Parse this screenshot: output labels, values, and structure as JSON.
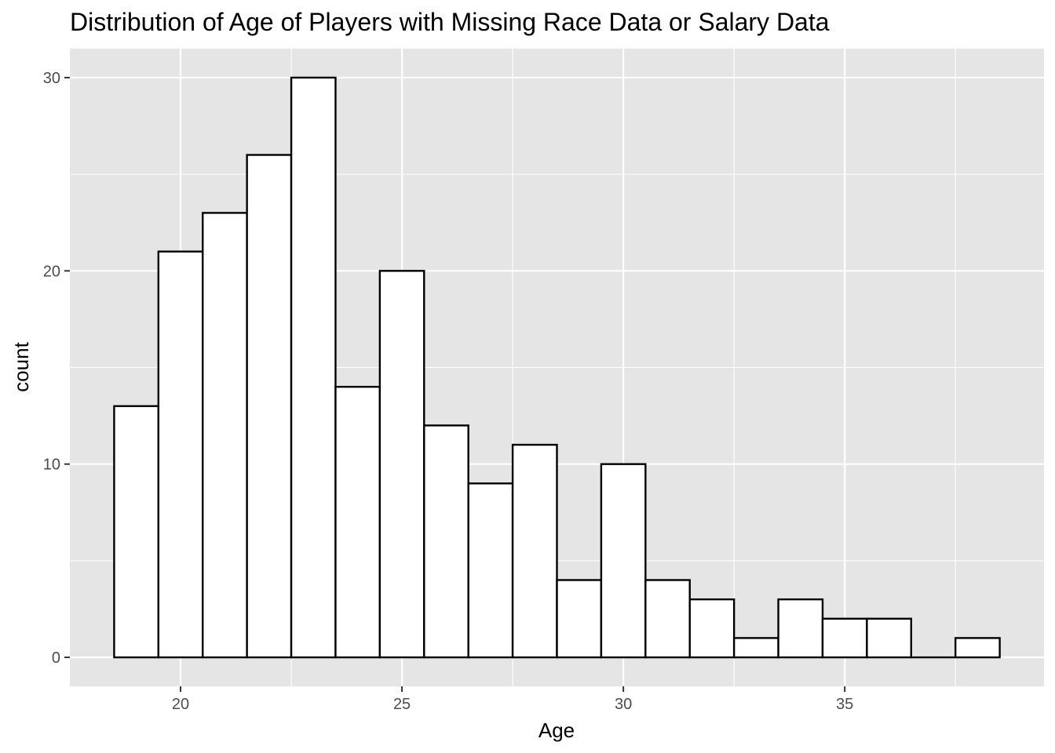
{
  "chart_data": {
    "type": "bar",
    "title": "Distribution of Age of Players with Missing Race Data or Salary Data",
    "xlabel": "Age",
    "ylabel": "count",
    "bin_width": 1,
    "bins": [
      {
        "x": 19,
        "count": 13
      },
      {
        "x": 20,
        "count": 21
      },
      {
        "x": 21,
        "count": 23
      },
      {
        "x": 22,
        "count": 26
      },
      {
        "x": 23,
        "count": 30
      },
      {
        "x": 24,
        "count": 14
      },
      {
        "x": 25,
        "count": 20
      },
      {
        "x": 26,
        "count": 12
      },
      {
        "x": 27,
        "count": 9
      },
      {
        "x": 28,
        "count": 11
      },
      {
        "x": 29,
        "count": 4
      },
      {
        "x": 30,
        "count": 10
      },
      {
        "x": 31,
        "count": 4
      },
      {
        "x": 32,
        "count": 3
      },
      {
        "x": 33,
        "count": 1
      },
      {
        "x": 34,
        "count": 3
      },
      {
        "x": 35,
        "count": 2
      },
      {
        "x": 36,
        "count": 2
      },
      {
        "x": 37,
        "count": 0
      },
      {
        "x": 38,
        "count": 1
      }
    ],
    "xlim": [
      17.5,
      39.5
    ],
    "ylim": [
      -1.5,
      31.5
    ],
    "x_ticks": [
      20,
      25,
      30,
      35
    ],
    "x_tick_labels": [
      "20",
      "25",
      "30",
      "35"
    ],
    "x_minor_ticks": [
      22.5,
      27.5,
      32.5,
      37.5
    ],
    "y_ticks": [
      0,
      10,
      20,
      30
    ],
    "y_tick_labels": [
      "0",
      "10",
      "20",
      "30"
    ],
    "y_minor_ticks": [
      5,
      15,
      25
    ],
    "grid": true,
    "legend": "none",
    "colors": {
      "panel_background": "#e5e5e5",
      "grid_line": "#ffffff",
      "bar_fill": "#ffffff",
      "bar_outline": "#000000",
      "tick_label": "#4d4d4d",
      "tick_mark": "#333333"
    }
  }
}
